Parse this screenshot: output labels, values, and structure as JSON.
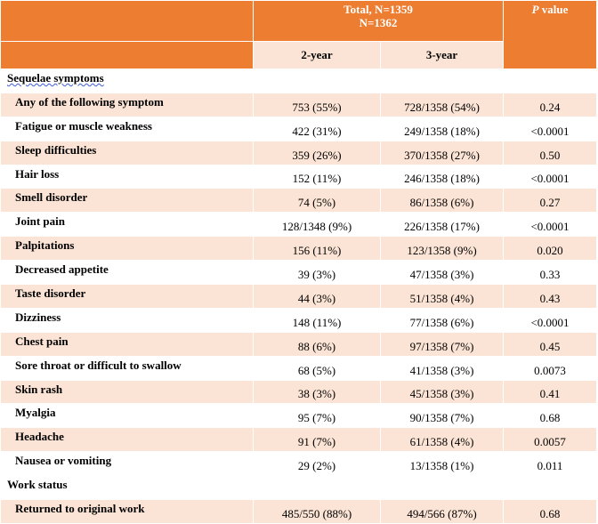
{
  "header": {
    "total_line1": "Total, N=1359",
    "total_line2": "N=1362",
    "col_2year": "2-year",
    "col_3year": "3-year",
    "p_letter": "P",
    "p_rest": " value"
  },
  "sections": {
    "sequelae": "Sequelae symptoms",
    "work": "Work status"
  },
  "rows": [
    {
      "label": "Any of the following symptom",
      "y2": "753 (55%)",
      "y3": "728/1358 (54%)",
      "p": "0.24"
    },
    {
      "label": "Fatigue or muscle weakness",
      "y2": "422 (31%)",
      "y3": "249/1358 (18%)",
      "p": "<0.0001"
    },
    {
      "label": "Sleep difficulties",
      "y2": "359 (26%)",
      "y3": "370/1358 (27%)",
      "p": "0.50"
    },
    {
      "label": "Hair loss",
      "y2": "152 (11%)",
      "y3": "246/1358 (18%)",
      "p": "<0.0001"
    },
    {
      "label": "Smell disorder",
      "y2": "74 (5%)",
      "y3": "86/1358 (6%)",
      "p": "0.27"
    },
    {
      "label": "Joint pain",
      "y2": "128/1348 (9%)",
      "y3": "226/1358 (17%)",
      "p": "<0.0001"
    },
    {
      "label": "Palpitations",
      "y2": "156 (11%)",
      "y3": "123/1358 (9%)",
      "p": "0.020"
    },
    {
      "label": "Decreased appetite",
      "y2": "39 (3%)",
      "y3": "47/1358 (3%)",
      "p": "0.33"
    },
    {
      "label": "Taste disorder",
      "y2": "44 (3%)",
      "y3": "51/1358 (4%)",
      "p": "0.43"
    },
    {
      "label": "Dizziness",
      "y2": "148 (11%)",
      "y3": "77/1358 (6%)",
      "p": "<0.0001"
    },
    {
      "label": "Chest pain",
      "y2": "88 (6%)",
      "y3": "97/1358 (7%)",
      "p": "0.45"
    },
    {
      "label": "Sore throat or difficult to swallow",
      "y2": "68 (5%)",
      "y3": "41/1358 (3%)",
      "p": "0.0073"
    },
    {
      "label": "Skin rash",
      "y2": "38 (3%)",
      "y3": "45/1358 (3%)",
      "p": "0.41"
    },
    {
      "label": "Myalgia",
      "y2": "95 (7%)",
      "y3": "90/1358 (7%)",
      "p": "0.68"
    },
    {
      "label": "Headache",
      "y2": "91 (7%)",
      "y3": "61/1358 (4%)",
      "p": "0.0057"
    },
    {
      "label": "Nausea or vomiting",
      "y2": "29 (2%)",
      "y3": "13/1358 (1%)",
      "p": "0.011"
    }
  ],
  "work_rows": [
    {
      "label": "Returned to original work",
      "y2": "485/550 (88%)",
      "y3": "494/566 (87%)",
      "p": "0.68"
    }
  ],
  "colors": {
    "header_orange": "#ed7d31",
    "stripe_peach": "#fbe4d5"
  }
}
